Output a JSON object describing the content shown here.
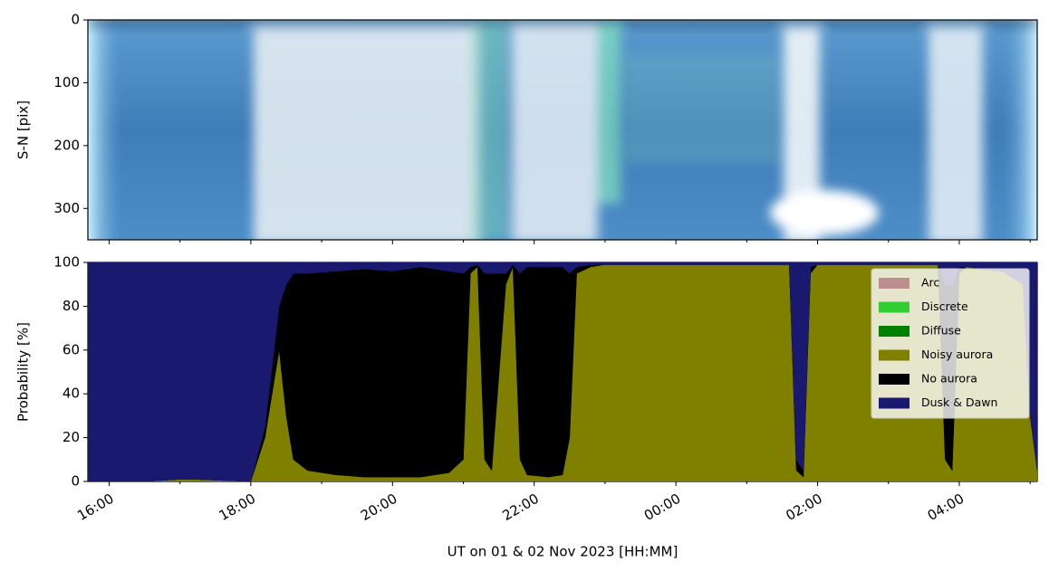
{
  "chart_data": [
    {
      "type": "image",
      "ylabel": "S-N [pix]",
      "ylim": [
        350,
        0
      ],
      "yticks": [
        0,
        100,
        200,
        300
      ]
    },
    {
      "type": "area",
      "ylabel": "Probability [%]",
      "xlabel": "UT on 01 & 02 Nov 2023 [HH:MM]",
      "xlim": [
        15.7,
        29.1
      ],
      "ylim": [
        0,
        100
      ],
      "yticks": [
        0,
        20,
        40,
        60,
        80,
        100
      ],
      "xticks": [
        {
          "value": 16,
          "label": "16:00"
        },
        {
          "value": 18,
          "label": "18:00"
        },
        {
          "value": 20,
          "label": "20:00"
        },
        {
          "value": 22,
          "label": "22:00"
        },
        {
          "value": 24,
          "label": "00:00"
        },
        {
          "value": 26,
          "label": "02:00"
        },
        {
          "value": 28,
          "label": "04:00"
        }
      ],
      "xminorticks": [
        17,
        19,
        21,
        23,
        25,
        27,
        29
      ],
      "legend": "upper right",
      "x": [
        15.7,
        16.5,
        17.0,
        17.2,
        18.0,
        18.2,
        18.4,
        18.5,
        18.6,
        18.8,
        19.2,
        19.6,
        20.0,
        20.4,
        20.8,
        21.0,
        21.1,
        21.2,
        21.3,
        21.4,
        21.6,
        21.7,
        21.8,
        21.9,
        22.2,
        22.4,
        22.5,
        22.6,
        22.8,
        23.0,
        24.0,
        25.0,
        25.6,
        25.7,
        25.8,
        25.9,
        26.0,
        27.0,
        27.7,
        27.8,
        27.9,
        28.0,
        28.1,
        28.3,
        28.6,
        28.9,
        29.0,
        29.1
      ],
      "series": [
        {
          "name": "Arc",
          "color": "#bc8f8f",
          "values": [
            0,
            0,
            0,
            0,
            0,
            0,
            0,
            0,
            0,
            0,
            0,
            0,
            0,
            0,
            0,
            0,
            0,
            0,
            0,
            0,
            0,
            0,
            0,
            0,
            0,
            0,
            0,
            0,
            0,
            0,
            0,
            0,
            0,
            0,
            0,
            0,
            0,
            0,
            0,
            0,
            0,
            0,
            0,
            0,
            0,
            0,
            0,
            0
          ]
        },
        {
          "name": "Discrete",
          "color": "#32cd32",
          "values": [
            0,
            0,
            0,
            0,
            0,
            0,
            0,
            0,
            0,
            0,
            0,
            0,
            0,
            0,
            0,
            0,
            0,
            0,
            0,
            0,
            0,
            0,
            0,
            0,
            0,
            0,
            0,
            0,
            0,
            0,
            0,
            0,
            0,
            0,
            0,
            0,
            0,
            0,
            0,
            0,
            0,
            0,
            0,
            0,
            0,
            0,
            0,
            0
          ]
        },
        {
          "name": "Diffuse",
          "color": "#008000",
          "values": [
            0,
            0,
            0,
            0,
            0,
            0,
            0,
            0,
            0,
            0,
            0,
            0,
            0,
            0,
            0,
            0,
            0,
            0,
            0,
            0,
            0,
            0,
            0,
            0,
            0,
            0,
            0,
            0,
            0,
            0,
            0,
            0,
            0,
            0,
            0,
            0,
            0,
            0,
            0,
            0,
            0,
            0,
            0,
            0,
            0,
            0,
            0,
            0
          ]
        },
        {
          "name": "Noisy aurora",
          "color": "#808000",
          "values": [
            0,
            0,
            1,
            1,
            0,
            20,
            60,
            30,
            10,
            5,
            3,
            2,
            2,
            2,
            4,
            10,
            95,
            98,
            10,
            5,
            90,
            98,
            10,
            3,
            2,
            3,
            20,
            95,
            98,
            99,
            99,
            99,
            99,
            5,
            2,
            95,
            99,
            99,
            99,
            10,
            5,
            95,
            98,
            97,
            96,
            90,
            30,
            5
          ]
        },
        {
          "name": "No aurora",
          "color": "#000000",
          "values": [
            0,
            0,
            0,
            0,
            0,
            5,
            20,
            60,
            85,
            90,
            93,
            95,
            94,
            96,
            92,
            85,
            3,
            1,
            85,
            90,
            5,
            1,
            85,
            95,
            96,
            95,
            75,
            3,
            1,
            0,
            0,
            0,
            0,
            5,
            3,
            3,
            0,
            0,
            0,
            80,
            85,
            3,
            0,
            0,
            0,
            0,
            0,
            0
          ]
        },
        {
          "name": "Dusk & Dawn",
          "color": "#191970",
          "values": [
            100,
            100,
            99,
            99,
            100,
            75,
            20,
            10,
            5,
            5,
            4,
            3,
            4,
            2,
            4,
            5,
            2,
            1,
            5,
            5,
            5,
            1,
            5,
            2,
            2,
            2,
            5,
            2,
            1,
            1,
            1,
            1,
            1,
            90,
            95,
            2,
            1,
            1,
            1,
            10,
            10,
            2,
            2,
            3,
            4,
            10,
            70,
            95
          ]
        }
      ]
    }
  ]
}
